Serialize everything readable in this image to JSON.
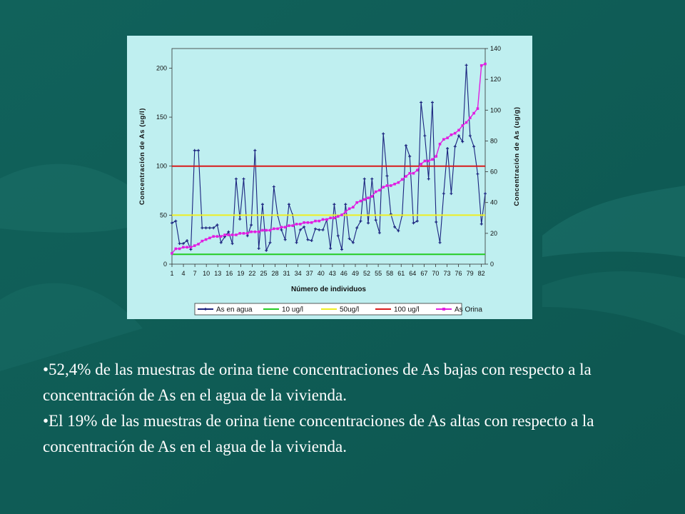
{
  "colors": {
    "background": "#0f5c55",
    "chart_background": "#bfeff0",
    "water": "#1a237e",
    "urine": "#e11ee1",
    "line10": "#22cc22",
    "line50": "#eeee22",
    "line100": "#d81b1b"
  },
  "chart_data": {
    "type": "line",
    "title": "",
    "xlabel": "Número de individuos",
    "ylabel": "Concentración de As (ug/l)",
    "y2label": "Concentración de As (ug/g)",
    "xlim": [
      1,
      83
    ],
    "ylim": [
      0,
      220
    ],
    "y2lim": [
      0,
      140
    ],
    "x_ticks": [
      1,
      4,
      7,
      10,
      13,
      16,
      19,
      22,
      25,
      28,
      31,
      34,
      37,
      40,
      43,
      46,
      49,
      52,
      55,
      58,
      61,
      64,
      67,
      70,
      73,
      76,
      79,
      82
    ],
    "y_ticks": [
      0,
      50,
      100,
      150,
      200
    ],
    "y2_ticks": [
      0,
      20,
      40,
      60,
      80,
      100,
      120,
      140
    ],
    "grid": false,
    "legend_position": "bottom",
    "series": [
      {
        "name": "As en agua",
        "axis": "left",
        "values": [
          42,
          44,
          21,
          21,
          24,
          15,
          116,
          116,
          37,
          37,
          37,
          37,
          40,
          22,
          28,
          33,
          21,
          87,
          46,
          87,
          29,
          40,
          116,
          16,
          61,
          14,
          22,
          79,
          50,
          35,
          25,
          61,
          50,
          22,
          35,
          38,
          25,
          24,
          36,
          35,
          35,
          45,
          16,
          61,
          29,
          15,
          61,
          26,
          22,
          37,
          44,
          87,
          42,
          87,
          45,
          32,
          133,
          90,
          51,
          38,
          34,
          50,
          121,
          110,
          42,
          44,
          165,
          131,
          87,
          165,
          43,
          22,
          72,
          118,
          72,
          120,
          131,
          125,
          203,
          131,
          120,
          92,
          41,
          72
        ]
      },
      {
        "name": "10 ug/l",
        "axis": "left",
        "values": [
          10,
          10
        ]
      },
      {
        "name": "50ug/l",
        "axis": "left",
        "values": [
          50,
          50
        ]
      },
      {
        "name": "100 ug/l",
        "axis": "left",
        "values": [
          100,
          100
        ]
      },
      {
        "name": "As Orina",
        "axis": "right",
        "values": [
          7,
          10,
          10,
          11,
          11,
          11,
          12,
          13,
          15,
          16,
          17,
          18,
          18,
          18,
          19,
          19,
          19,
          19,
          20,
          20,
          20,
          21,
          21,
          21,
          22,
          22,
          22,
          23,
          23,
          24,
          24,
          25,
          25,
          26,
          26,
          27,
          27,
          27,
          28,
          28,
          29,
          29,
          30,
          30,
          31,
          32,
          34,
          36,
          37,
          40,
          41,
          42,
          43,
          44,
          47,
          48,
          50,
          51,
          51,
          52,
          53,
          55,
          57,
          59,
          59,
          61,
          65,
          67,
          67,
          68,
          70,
          78,
          81,
          82,
          84,
          85,
          87,
          90,
          92,
          95,
          98,
          101,
          129,
          130
        ]
      }
    ]
  },
  "bullets": [
    "•52,4% de las muestras de orina tiene concentraciones de As bajas con respecto a la concentración de As en el agua de la vivienda.",
    "•El 19% de las muestras de orina tiene concentraciones de As altas con respecto a la concentración de As en el agua de la vivienda."
  ]
}
